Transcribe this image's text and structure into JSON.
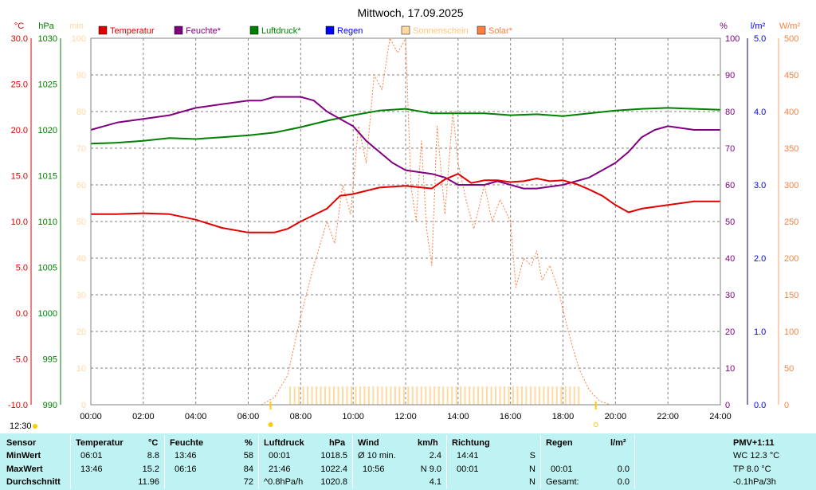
{
  "title": "Mittwoch, 17.09.2025",
  "axis_units": {
    "temp": "°C",
    "pressure": "hPa",
    "sunshine": "min",
    "humidity": "%",
    "rain": "l/m²",
    "solar": "W/m²"
  },
  "legend": [
    {
      "label": "Temperatur",
      "color": "#e00000"
    },
    {
      "label": "Feuchte*",
      "color": "#800080"
    },
    {
      "label": "Luftdruck*",
      "color": "#008000"
    },
    {
      "label": "Regen",
      "color": "#0000ff"
    },
    {
      "label": "Sonnenschein",
      "color": "#ffd9a0"
    },
    {
      "label": "Solar*",
      "color": "#ff7f3f"
    }
  ],
  "axes": {
    "temp_ticks": [
      "30.0",
      "25.0",
      "20.0",
      "15.0",
      "10.0",
      "5.0",
      "0.0",
      "-5.0",
      "-10.0"
    ],
    "pressure_ticks": [
      "1030",
      "1025",
      "1020",
      "1015",
      "1010",
      "1005",
      "1000",
      "995",
      "990"
    ],
    "sunshine_ticks": [
      "100",
      "90",
      "80",
      "70",
      "60",
      "50",
      "40",
      "30",
      "20",
      "10",
      "0"
    ],
    "humidity_ticks": [
      "100",
      "90",
      "80",
      "70",
      "60",
      "50",
      "40",
      "30",
      "20",
      "10",
      "0"
    ],
    "rain_ticks": [
      "5.0",
      "4.0",
      "3.0",
      "2.0",
      "1.0",
      "0.0"
    ],
    "solar_ticks": [
      "500",
      "450",
      "400",
      "350",
      "300",
      "250",
      "200",
      "150",
      "100",
      "50",
      "0"
    ],
    "time_ticks": [
      "00:00",
      "02:00",
      "04:00",
      "06:00",
      "08:00",
      "10:00",
      "12:00",
      "14:00",
      "16:00",
      "18:00",
      "20:00",
      "22:00",
      "24:00"
    ]
  },
  "markers": {
    "noon_time": "12:30",
    "sunrise_hour": 6.85,
    "sunset_hour": 19.25
  },
  "chart_data": {
    "type": "line",
    "title": "Mittwoch, 17.09.2025",
    "x_unit": "hour",
    "xlim": [
      0,
      24
    ],
    "series": [
      {
        "name": "Temperatur",
        "axis": "°C",
        "ylim": [
          -10,
          30
        ],
        "x": [
          0,
          1,
          2,
          3,
          4,
          5,
          6,
          7,
          7.5,
          8,
          9,
          9.5,
          10,
          11,
          12,
          13,
          13.5,
          14,
          14.5,
          15,
          15.5,
          16,
          16.5,
          17,
          17.5,
          18,
          18.5,
          19,
          19.5,
          20,
          20.5,
          21,
          22,
          23,
          24
        ],
        "y": [
          10.8,
          10.8,
          10.9,
          10.8,
          10.2,
          9.3,
          8.8,
          8.8,
          9.2,
          10.0,
          11.4,
          12.8,
          13.0,
          13.7,
          13.9,
          13.6,
          14.6,
          15.2,
          14.2,
          14.5,
          14.5,
          14.3,
          14.4,
          14.7,
          14.4,
          14.5,
          14.1,
          13.5,
          12.8,
          11.8,
          11.0,
          11.4,
          11.8,
          12.2,
          12.2
        ]
      },
      {
        "name": "Feuchte*",
        "axis": "%",
        "ylim": [
          0,
          100
        ],
        "x": [
          0,
          1,
          2,
          3,
          3.5,
          4,
          5,
          6,
          6.5,
          7,
          8,
          8.5,
          9,
          9.5,
          10,
          10.5,
          11,
          11.5,
          12,
          13,
          13.5,
          14,
          14.5,
          15,
          15.5,
          16,
          16.5,
          17,
          18,
          19,
          19.5,
          20,
          20.5,
          21,
          21.5,
          22,
          23,
          24
        ],
        "y": [
          75,
          77,
          78,
          79,
          80,
          81,
          82,
          83,
          83,
          84,
          84,
          83,
          80,
          78,
          76,
          72,
          69,
          66,
          64,
          63,
          62,
          60,
          60,
          60,
          61,
          60,
          59,
          59,
          60,
          62,
          64,
          66,
          69,
          73,
          75,
          76,
          75,
          75
        ]
      },
      {
        "name": "Luftdruck*",
        "axis": "hPa",
        "ylim": [
          990,
          1030
        ],
        "x": [
          0,
          1,
          2,
          3,
          4,
          5,
          6,
          7,
          8,
          9,
          10,
          11,
          12,
          13,
          14,
          15,
          16,
          17,
          18,
          19,
          20,
          21,
          22,
          23,
          24
        ],
        "y": [
          1018.5,
          1018.6,
          1018.8,
          1019.1,
          1019.0,
          1019.2,
          1019.4,
          1019.7,
          1020.3,
          1021.0,
          1021.6,
          1022.1,
          1022.3,
          1021.8,
          1021.8,
          1021.8,
          1021.6,
          1021.7,
          1021.5,
          1021.8,
          1022.1,
          1022.3,
          1022.4,
          1022.3,
          1022.2
        ]
      },
      {
        "name": "Solar*",
        "axis": "W/m²",
        "ylim": [
          0,
          500
        ],
        "x": [
          6.5,
          7,
          7.5,
          8,
          8.5,
          9,
          9.3,
          9.6,
          9.9,
          10.2,
          10.5,
          10.8,
          11.1,
          11.4,
          11.7,
          12,
          12.2,
          12.4,
          12.6,
          12.8,
          13,
          13.2,
          13.5,
          13.8,
          14,
          14.3,
          14.6,
          15,
          15.3,
          15.6,
          16,
          16.2,
          16.5,
          16.8,
          17,
          17.2,
          17.5,
          17.8,
          18.2,
          18.6,
          19,
          19.4,
          19.8
        ],
        "y": [
          0,
          10,
          40,
          120,
          190,
          250,
          220,
          300,
          260,
          380,
          330,
          450,
          430,
          500,
          480,
          500,
          300,
          250,
          360,
          240,
          190,
          380,
          260,
          400,
          330,
          280,
          240,
          300,
          250,
          280,
          250,
          160,
          200,
          190,
          210,
          170,
          190,
          160,
          100,
          50,
          20,
          5,
          0
        ]
      },
      {
        "name": "Sonnenschein",
        "axis": "min",
        "ylim": [
          0,
          100
        ],
        "x_range": [
          7.6,
          18.6
        ],
        "y": 5
      }
    ]
  },
  "stats": {
    "sensor_header": "Sensor",
    "row_labels": [
      "MinWert",
      "MaxWert",
      "Durchschnitt"
    ],
    "temp": {
      "header": "Temperatur",
      "unit": "°C",
      "min_time": "06:01",
      "min": "8.8",
      "max_time": "13:46",
      "max": "15.2",
      "avg": "11.96"
    },
    "humidity": {
      "header": "Feuchte",
      "unit": "%",
      "min_time": "13:46",
      "min": "58",
      "max_time": "06:16",
      "max": "84",
      "avg": "72"
    },
    "pressure": {
      "header": "Luftdruck",
      "unit": "hPa",
      "min_time": "00:01",
      "min": "1018.5",
      "max_time": "21:46",
      "max": "1022.4",
      "trend": "^0.8hPa/h",
      "avg": "1020.8"
    },
    "wind": {
      "header": "Wind",
      "unit": "km/h",
      "row1_label": "Ø 10 min.",
      "row1": "2.4",
      "row2_time": "10:56",
      "row2": "N 9.0",
      "avg": "4.1"
    },
    "direction": {
      "header": "Richtung",
      "row1_time": "14:41",
      "row1": "S",
      "row2_time": "00:01",
      "row2": "N",
      "row3": "N"
    },
    "rain": {
      "header": "Regen",
      "unit": "l/m²",
      "row2_time": "00:01",
      "row2": "0.0",
      "row3_label": "Gesamt:",
      "row3": "0.0"
    },
    "extra": {
      "header": "PMV+1:11",
      "row1": "WC 12.3 °C",
      "row2": "TP 8.0 °C",
      "row3": "-0.1hPa/3h"
    }
  }
}
